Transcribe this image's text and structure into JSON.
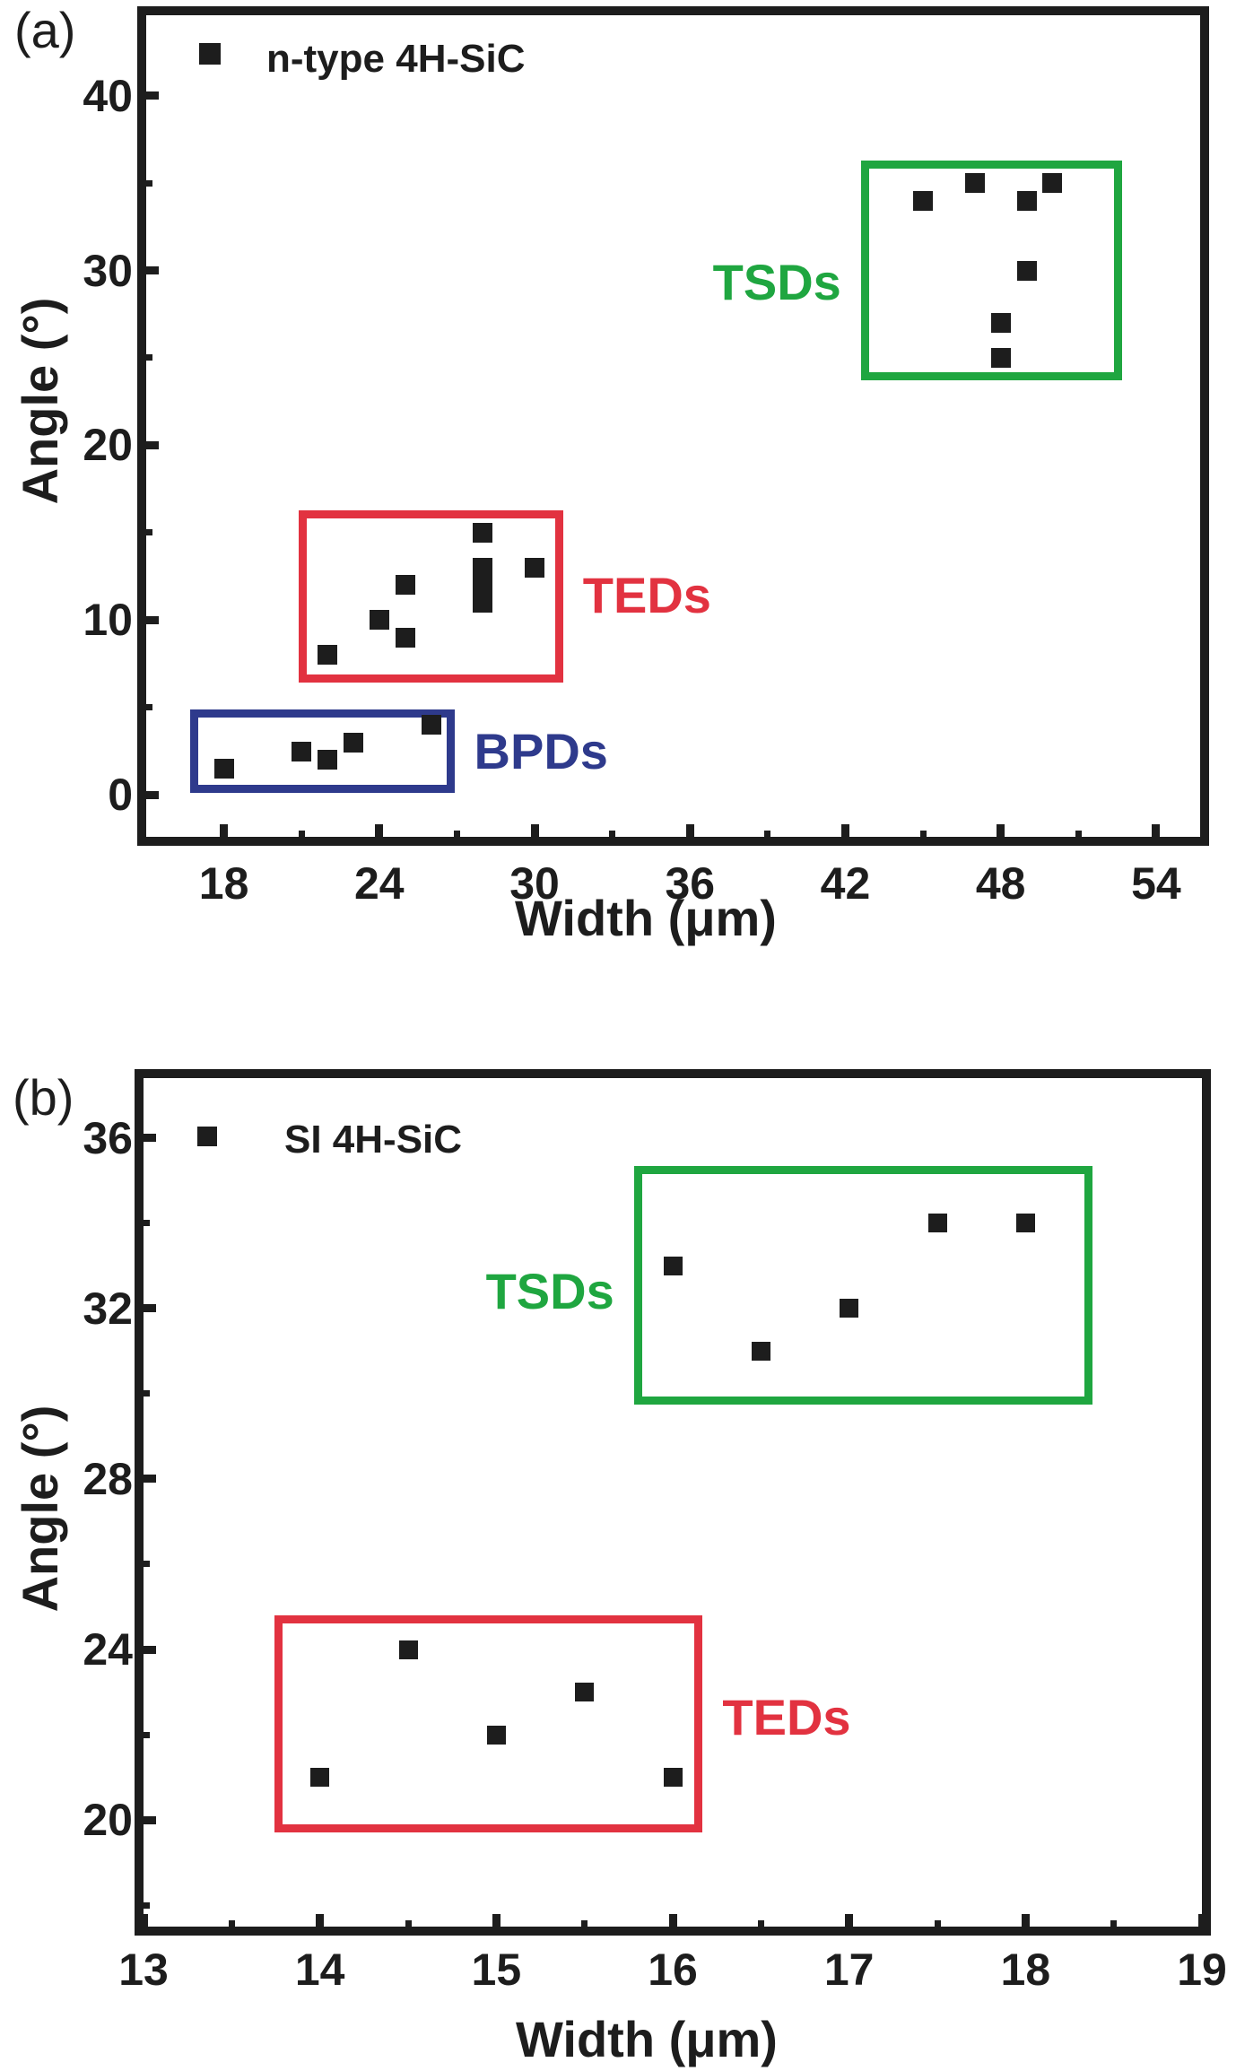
{
  "figure": {
    "description": "Two-panel scatter figure of dislocation pit Angle vs Width for 4H-SiC",
    "text_color": "#1d1d1d"
  },
  "chart_data": [
    {
      "type": "scatter",
      "title": "",
      "panel_label": "(a)",
      "legend": {
        "label": "n-type 4H-SiC",
        "marker": "black-square"
      },
      "xlabel": "Width (μm)",
      "ylabel": "Angle (°)",
      "xlim": [
        15,
        55.7
      ],
      "ylim": [
        -2.4,
        44.6
      ],
      "x_major_ticks": [
        18,
        24,
        30,
        36,
        42,
        48,
        54
      ],
      "x_minor_ticks": [
        21,
        27,
        33,
        39,
        45,
        51
      ],
      "y_major_ticks": [
        0,
        10,
        20,
        30,
        40
      ],
      "y_minor_ticks": [
        5,
        15,
        25,
        35
      ],
      "grid": false,
      "legend_position": "top-left",
      "marker_color": "#1d1d1d",
      "series": [
        {
          "name": "BPDs",
          "points": [
            [
              18,
              1.5
            ],
            [
              21,
              2.5
            ],
            [
              22,
              2
            ],
            [
              23,
              3
            ],
            [
              26,
              4
            ]
          ]
        },
        {
          "name": "TEDs",
          "points": [
            [
              22,
              8
            ],
            [
              24,
              10
            ],
            [
              25,
              9
            ],
            [
              25,
              12
            ],
            [
              28,
              11
            ],
            [
              28,
              12
            ],
            [
              28,
              13
            ],
            [
              28,
              15
            ],
            [
              30,
              13
            ]
          ]
        },
        {
          "name": "TSDs",
          "points": [
            [
              45,
              34
            ],
            [
              47,
              35
            ],
            [
              48,
              25
            ],
            [
              48,
              27
            ],
            [
              49,
              30
            ],
            [
              49,
              34
            ],
            [
              50,
              35
            ]
          ]
        }
      ],
      "annotation_boxes": [
        {
          "label": "BPDs",
          "color": "#2E3A8C",
          "x_range": [
            16.7,
            26.9
          ],
          "y_range": [
            0.1,
            4.9
          ],
          "label_side": "right",
          "label_y": 2.5
        },
        {
          "label": "TEDs",
          "color": "#E23240",
          "x_range": [
            20.9,
            31.1
          ],
          "y_range": [
            6.4,
            16.3
          ],
          "label_side": "right",
          "label_y": 11.4
        },
        {
          "label": "TSDs",
          "color": "#1FA640",
          "x_range": [
            42.6,
            52.7
          ],
          "y_range": [
            23.7,
            36.3
          ],
          "label_side": "left",
          "label_y": 29.3
        }
      ]
    },
    {
      "type": "scatter",
      "title": "",
      "panel_label": "(b)",
      "legend": {
        "label": "SI 4H-SiC",
        "marker": "black-square"
      },
      "xlabel": "Width (μm)",
      "ylabel": "Angle (°)",
      "xlim": [
        13,
        19
      ],
      "ylim": [
        17.5,
        37.4
      ],
      "x_major_ticks": [
        13,
        14,
        15,
        16,
        17,
        18,
        19
      ],
      "x_minor_ticks": [
        13.5,
        14.5,
        15.5,
        16.5,
        17.5,
        18.5
      ],
      "y_major_ticks": [
        20,
        24,
        28,
        32,
        36
      ],
      "y_minor_ticks": [
        18,
        22,
        26,
        30,
        34
      ],
      "grid": false,
      "legend_position": "top-left",
      "marker_color": "#1d1d1d",
      "series": [
        {
          "name": "TEDs",
          "points": [
            [
              14,
              21
            ],
            [
              14.5,
              24
            ],
            [
              15,
              22
            ],
            [
              15.5,
              23
            ],
            [
              16,
              21
            ]
          ]
        },
        {
          "name": "TSDs",
          "points": [
            [
              16,
              33
            ],
            [
              16.5,
              31
            ],
            [
              17,
              32
            ],
            [
              17.5,
              34
            ],
            [
              18,
              34
            ]
          ]
        }
      ],
      "annotation_boxes": [
        {
          "label": "TEDs",
          "color": "#E23240",
          "x_range": [
            13.74,
            16.17
          ],
          "y_range": [
            19.7,
            24.8
          ],
          "label_side": "right",
          "label_y": 22.4
        },
        {
          "label": "TSDs",
          "color": "#1FA640",
          "x_range": [
            15.78,
            18.38
          ],
          "y_range": [
            29.75,
            35.33
          ],
          "label_side": "left",
          "label_y": 32.4
        }
      ]
    }
  ]
}
